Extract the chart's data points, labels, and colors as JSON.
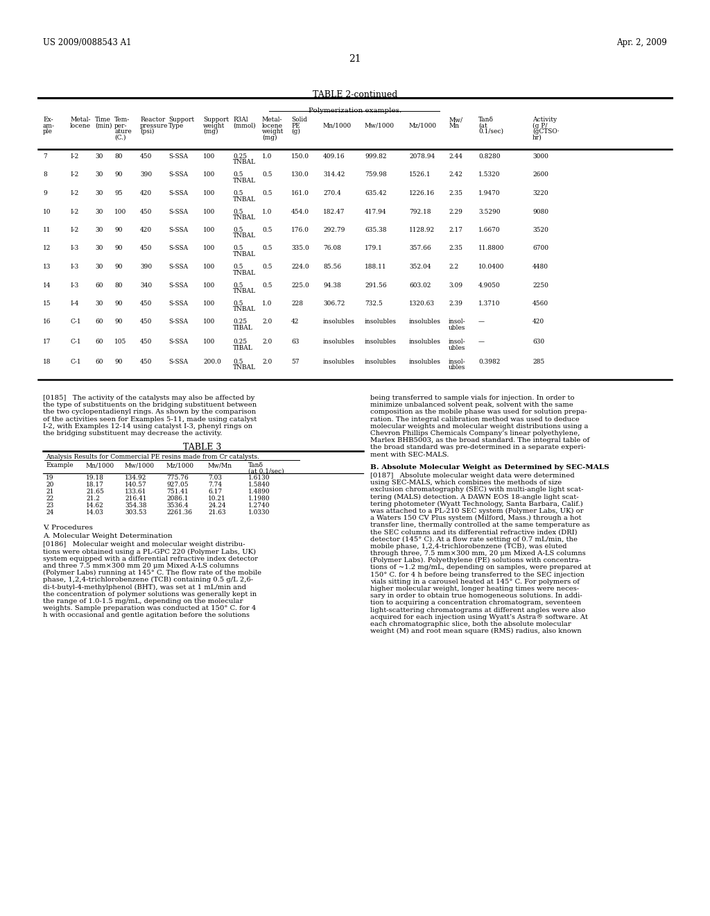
{
  "header_left": "US 2009/0088543 A1",
  "header_right": "Apr. 2, 2009",
  "page_number": "21",
  "table2_title": "TABLE 2-continued",
  "table2_subtitle": "Polymerization examples.",
  "table2_col_headers": [
    [
      "Ex-",
      "Metal-",
      "Time",
      "Tem-",
      "Reactor",
      "Support",
      "Support",
      "R3Al",
      "Metal-",
      "Solid",
      "",
      "",
      "",
      "Mw/",
      "Tanδ",
      "Activity"
    ],
    [
      "am-",
      "locene",
      "(min)",
      "per-",
      "pressure",
      "Type",
      "weight",
      "(mmol)",
      "locene",
      "PE",
      "Mn/1000",
      "Mw/1000",
      "Mz/1000",
      "Mn",
      "(at",
      "(g P/"
    ],
    [
      "ple",
      "",
      "",
      "ature",
      "(psi)",
      "",
      "(mg)",
      "",
      "weight",
      "(g)",
      "",
      "",
      "",
      "",
      "0.1/sec)",
      "(gCTSO·"
    ],
    [
      "",
      "",
      "",
      "(C.)",
      "",
      "",
      "",
      "",
      "(mg)",
      "",
      "",
      "",
      "",
      "",
      "",
      "hr)"
    ]
  ],
  "table2_rows": [
    [
      "7",
      "I-2",
      "30",
      "80",
      "450",
      "S-SSA",
      "100",
      "0.25",
      "1.0",
      "150.0",
      "409.16",
      "999.82",
      "2078.94",
      "2.44",
      "0.8280",
      "3000",
      "TNBAL"
    ],
    [
      "8",
      "I-2",
      "30",
      "90",
      "390",
      "S-SSA",
      "100",
      "0.5",
      "0.5",
      "130.0",
      "314.42",
      "759.98",
      "1526.1",
      "2.42",
      "1.5320",
      "2600",
      "TNBAL"
    ],
    [
      "9",
      "I-2",
      "30",
      "95",
      "420",
      "S-SSA",
      "100",
      "0.5",
      "0.5",
      "161.0",
      "270.4",
      "635.42",
      "1226.16",
      "2.35",
      "1.9470",
      "3220",
      "TNBAL"
    ],
    [
      "10",
      "I-2",
      "30",
      "100",
      "450",
      "S-SSA",
      "100",
      "0.5",
      "1.0",
      "454.0",
      "182.47",
      "417.94",
      "792.18",
      "2.29",
      "3.5290",
      "9080",
      "TNBAL"
    ],
    [
      "11",
      "I-2",
      "30",
      "90",
      "420",
      "S-SSA",
      "100",
      "0.5",
      "0.5",
      "176.0",
      "292.79",
      "635.38",
      "1128.92",
      "2.17",
      "1.6670",
      "3520",
      "TNBAL"
    ],
    [
      "12",
      "I-3",
      "30",
      "90",
      "450",
      "S-SSA",
      "100",
      "0.5",
      "0.5",
      "335.0",
      "76.08",
      "179.1",
      "357.66",
      "2.35",
      "11.8800",
      "6700",
      "TNBAL"
    ],
    [
      "13",
      "I-3",
      "30",
      "90",
      "390",
      "S-SSA",
      "100",
      "0.5",
      "0.5",
      "224.0",
      "85.56",
      "188.11",
      "352.04",
      "2.2",
      "10.0400",
      "4480",
      "TNBAL"
    ],
    [
      "14",
      "I-3",
      "60",
      "80",
      "340",
      "S-SSA",
      "100",
      "0.5",
      "0.5",
      "225.0",
      "94.38",
      "291.56",
      "603.02",
      "3.09",
      "4.9050",
      "2250",
      "TNBAL"
    ],
    [
      "15",
      "I-4",
      "30",
      "90",
      "450",
      "S-SSA",
      "100",
      "0.5",
      "1.0",
      "228",
      "306.72",
      "732.5",
      "1320.63",
      "2.39",
      "1.3710",
      "4560",
      "TNBAL"
    ],
    [
      "16",
      "C-1",
      "60",
      "90",
      "450",
      "S-SSA",
      "100",
      "0.25",
      "2.0",
      "42",
      "insolubles",
      "insolubles",
      "insolubles",
      "insol-",
      "—",
      "420",
      "TIBAL",
      "ubles"
    ],
    [
      "17",
      "C-1",
      "60",
      "105",
      "450",
      "S-SSA",
      "100",
      "0.25",
      "2.0",
      "63",
      "insolubles",
      "insolubles",
      "insolubles",
      "insol-",
      "—",
      "630",
      "TIBAL",
      "ubles"
    ],
    [
      "18",
      "C-1",
      "60",
      "90",
      "450",
      "S-SSA",
      "200.0",
      "0.5",
      "2.0",
      "57",
      "insolubles",
      "insolubles",
      "insolubles",
      "insol-",
      "0.3982",
      "285",
      "TNBAL",
      "ubles"
    ]
  ],
  "table3_title": "TABLE 3",
  "table3_subtitle": "Analysis Results for Commercial PE resins made from Cr catalysts.",
  "table3_col_headers": [
    "Example",
    "Mn/1000",
    "Mw/1000",
    "Mz/1000",
    "Mw/Mn",
    "Tanδ",
    "(at 0.1/sec)"
  ],
  "table3_rows": [
    [
      "19",
      "19.18",
      "134.92",
      "775.76",
      "7.03",
      "1.6130"
    ],
    [
      "20",
      "18.17",
      "140.57",
      "927.05",
      "7.74",
      "1.5840"
    ],
    [
      "21",
      "21.65",
      "133.61",
      "751.41",
      "6.17",
      "1.4890"
    ],
    [
      "22",
      "21.2",
      "216.41",
      "2086.1",
      "10.21",
      "1.1980"
    ],
    [
      "23",
      "14.62",
      "354.38",
      "3536.4",
      "24.24",
      "1.2740"
    ],
    [
      "24",
      "14.03",
      "303.53",
      "2261.36",
      "21.63",
      "1.0330"
    ]
  ],
  "section_v": "V. Procedures",
  "section_a": "A. Molecular Weight Determination",
  "para_0186_left": "[0186]   Molecular weight and molecular weight distribu-\ntions were obtained using a PL-GPC 220 (Polymer Labs, UK)\nsystem equipped with a differential refractive index detector\nand three 7.5 mm×300 mm 20 μm Mixed A-LS columns\n(Polymer Labs) running at 145° C. The flow rate of the mobile\nphase, 1,2,4-trichlorobenzene (TCB) containing 0.5 g/L 2,6-\ndi-t-butyl-4-methylphenol (BHT), was set at 1 mL/min and\nthe concentration of polymer solutions was generally kept in\nthe range of 1.0-1.5 mg/mL, depending on the molecular\nweights. Sample preparation was conducted at 150° C. for 4\nh with occasional and gentle agitation before the solutions",
  "para_0185_left": "[0185]   The activity of the catalysts may also be affected by\nthe type of substituents on the bridging substituent between\nthe two cyclopentadienyl rings. As shown by the comparison\nof the activities seen for Examples 5-11, made using catalyst\nI-2, with Examples 12-14 using catalyst I-3, phenyl rings on\nthe bridging substituent may decrease the activity.",
  "para_right_top": "being transferred to sample vials for injection. In order to\nminimize unbalanced solvent peak, solvent with the same\ncomposition as the mobile phase was used for solution prepa-\nration. The integral calibration method was used to deduce\nmolecular weights and molecular weight distributions using a\nChevron Phillips Chemicals Company’s linear polyethylene,\nMarlex BHB5003, as the broad standard. The integral table of\nthe broad standard was pre-determined in a separate experi-\nment with SEC-MALS.",
  "section_b": "B. Absolute Molecular Weight as Determined by SEC-MALS",
  "para_0187_right": "[0187]   Absolute molecular weight data were determined\nusing SEC-MALS, which combines the methods of size\nexclusion chromatography (SEC) with multi-angle light scat-\ntering (MALS) detection. A DAWN EOS 18-angle light scat-\ntering photometer (Wyatt Technology, Santa Barbara, Calif.)\nwas attached to a PL-210 SEC system (Polymer Labs, UK) or\na Waters 150 CV Plus system (Milford, Mass.) through a hot\ntransfer line, thermally controlled at the same temperature as\nthe SEC columns and its differential refractive index (DRI)\ndetector (145° C). At a flow rate setting of 0.7 mL/min, the\nmobile phase, 1,2,4-trichlorobenzene (TCB), was eluted\nthrough three, 7.5 mm×300 mm, 20 μm Mixed A-LS columns\n(Polymer Labs). Polyethylene (PE) solutions with concentra-\ntions of ~1.2 mg/mL, depending on samples, were prepared at\n150° C. for 4 h before being transferred to the SEC injection\nvials sitting in a carousel heated at 145° C. For polymers of\nhigher molecular weight, longer heating times were neces-\nsary in order to obtain true homogeneous solutions. In addi-\ntion to acquiring a concentration chromatogram, seventeen\nlight-scattering chromatograms at different angles were also\nacquired for each injection using Wyatt’s Astra® software. At\neach chromatographic slice, both the absolute molecular\nweight (M) and root mean square (RMS) radius, also known"
}
